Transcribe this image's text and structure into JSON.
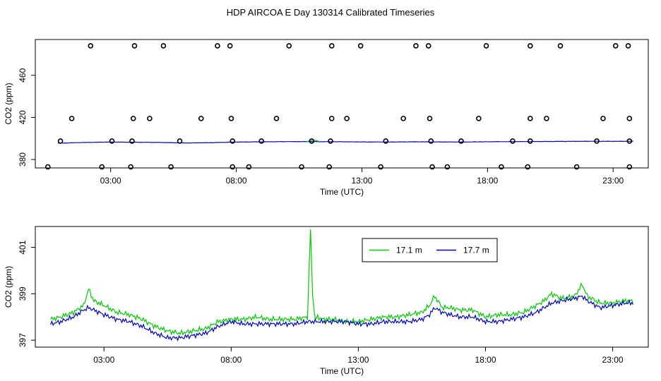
{
  "title": "HDP AIRCOA E  Day 130314  Calibrated Timeseries",
  "chart_data": [
    {
      "type": "scatter+line",
      "xlabel": "Time (UTC)",
      "ylabel": "CO2 (ppm)",
      "xlim": [
        0,
        24.4
      ],
      "ylim": [
        372,
        494
      ],
      "x_ticks": [
        3,
        8,
        13,
        18,
        23
      ],
      "x_tick_labels": [
        "03:00",
        "08:00",
        "13:00",
        "18:00",
        "23:00"
      ],
      "y_ticks": [
        380,
        420,
        460
      ],
      "y_tick_labels": [
        "380",
        "420",
        "460"
      ],
      "calibration_points": {
        "x": [
          2.2,
          3.95,
          5.1,
          7.25,
          7.75,
          10.1,
          11.8,
          12.95,
          15.15,
          15.65,
          17.95,
          19.7,
          20.9,
          23.1,
          23.6,
          1.45,
          3.9,
          4.55,
          6.6,
          7.8,
          9.6,
          11.8,
          12.4,
          14.65,
          15.7,
          17.65,
          19.7,
          20.35,
          22.6,
          23.65,
          1.0,
          3.05,
          3.85,
          5.75,
          7.85,
          9.0,
          11.0,
          11.75,
          13.95,
          15.75,
          16.95,
          19.0,
          19.7,
          22.35,
          23.65,
          0.5,
          2.65,
          3.8,
          5.4,
          7.85,
          8.5,
          10.6,
          11.7,
          13.75,
          15.8,
          16.4,
          18.55,
          19.6,
          21.55,
          23.65
        ],
        "y": [
          488,
          488,
          488,
          488,
          488,
          488,
          488,
          488,
          488,
          488,
          488,
          488,
          488,
          488,
          488,
          419,
          419,
          419,
          419,
          419,
          419,
          419,
          419,
          419,
          419,
          419,
          419,
          419,
          419,
          419,
          397.5,
          397.5,
          397.5,
          397.5,
          397.5,
          397.5,
          397.5,
          397.5,
          397.5,
          397.5,
          397.5,
          397.5,
          397.5,
          397.5,
          397.5,
          373,
          373,
          373,
          373,
          373,
          373,
          373,
          373,
          373,
          373,
          373,
          373,
          373,
          373,
          373
        ]
      },
      "series": [
        {
          "name": "17.7 m",
          "color": "#0000cc",
          "x": [
            0.9,
            2.0,
            3.0,
            5.0,
            6.0,
            7.0,
            8.0,
            9.0,
            10.0,
            11.0,
            12.0,
            13.0,
            14.0,
            15.0,
            16.0,
            17.0,
            18.0,
            19.0,
            20.0,
            21.0,
            22.0,
            23.0,
            23.8
          ],
          "values": [
            395.5,
            396.2,
            396.6,
            396.2,
            395.7,
            396.0,
            396.6,
            396.8,
            397.0,
            397.0,
            396.9,
            396.7,
            396.6,
            396.8,
            396.7,
            396.6,
            396.9,
            397.0,
            397.1,
            397.2,
            397.3,
            397.3,
            397.3
          ]
        },
        {
          "name": "17.1 m",
          "color": "#00cc00",
          "x": [
            10.8,
            11.1,
            11.3
          ],
          "values": [
            397.0,
            398.5,
            397.2
          ]
        }
      ]
    },
    {
      "type": "line",
      "xlabel": "Time (UTC)",
      "ylabel": "CO2 (ppm)",
      "xlim": [
        0.3,
        24.4
      ],
      "ylim": [
        396.7,
        401.9
      ],
      "x_ticks": [
        3,
        8,
        13,
        18,
        23
      ],
      "x_tick_labels": [
        "03:00",
        "08:00",
        "13:00",
        "18:00",
        "23:00"
      ],
      "y_ticks": [
        397,
        399,
        401
      ],
      "y_tick_labels": [
        "397",
        "399",
        "401"
      ],
      "legend": {
        "position": "top-right",
        "entries": [
          "17.1 m",
          "17.7 m"
        ]
      },
      "series": [
        {
          "name": "17.1 m",
          "color": "#00cc00",
          "x": [
            0.9,
            1.3,
            1.8,
            2.2,
            2.4,
            2.6,
            3.0,
            3.5,
            4.0,
            4.5,
            5.0,
            5.5,
            6.0,
            6.5,
            7.0,
            7.5,
            8.0,
            8.5,
            9.0,
            9.5,
            10.0,
            10.5,
            11.0,
            11.12,
            11.2,
            11.3,
            11.4,
            11.6,
            12.0,
            12.5,
            13.0,
            13.5,
            14.0,
            14.5,
            15.0,
            15.5,
            15.8,
            16.0,
            16.3,
            16.6,
            17.0,
            17.5,
            18.0,
            18.5,
            19.0,
            19.5,
            20.0,
            20.3,
            20.6,
            21.0,
            21.5,
            21.8,
            22.0,
            22.5,
            23.0,
            23.5,
            23.8
          ],
          "values": [
            397.9,
            398.0,
            398.2,
            398.5,
            399.2,
            398.7,
            398.5,
            398.2,
            398.1,
            397.9,
            397.6,
            397.4,
            397.3,
            397.4,
            397.5,
            397.8,
            397.9,
            397.9,
            398.0,
            397.9,
            397.9,
            397.9,
            398.0,
            401.8,
            399.0,
            397.9,
            398.0,
            397.9,
            397.9,
            397.8,
            397.8,
            397.9,
            398.0,
            398.0,
            398.1,
            398.2,
            398.5,
            398.9,
            398.4,
            398.4,
            398.3,
            398.3,
            398.0,
            398.1,
            398.1,
            398.2,
            398.5,
            398.7,
            399.0,
            398.8,
            398.9,
            399.4,
            398.9,
            398.6,
            398.6,
            398.7,
            398.7
          ]
        },
        {
          "name": "17.7 m",
          "color": "#0000cc",
          "x": [
            0.9,
            1.3,
            1.8,
            2.2,
            2.4,
            2.6,
            3.0,
            3.5,
            4.0,
            4.5,
            5.0,
            5.5,
            6.0,
            6.5,
            7.0,
            7.5,
            8.0,
            8.5,
            9.0,
            9.5,
            10.0,
            10.5,
            11.0,
            11.2,
            11.5,
            12.0,
            12.5,
            13.0,
            13.5,
            14.0,
            14.5,
            15.0,
            15.5,
            15.8,
            16.0,
            16.3,
            16.6,
            17.0,
            17.5,
            18.0,
            18.5,
            19.0,
            19.5,
            20.0,
            20.3,
            20.6,
            21.0,
            21.5,
            21.8,
            22.0,
            22.5,
            23.0,
            23.5,
            23.8
          ],
          "values": [
            397.7,
            397.8,
            398.0,
            398.3,
            398.4,
            398.3,
            398.1,
            397.9,
            397.8,
            397.6,
            397.3,
            397.1,
            397.1,
            397.2,
            397.3,
            397.6,
            397.8,
            397.7,
            397.7,
            397.7,
            397.7,
            397.7,
            397.8,
            397.8,
            397.8,
            397.8,
            397.8,
            397.7,
            397.7,
            397.8,
            397.8,
            397.8,
            397.9,
            398.1,
            398.4,
            398.2,
            398.1,
            398.0,
            398.0,
            397.8,
            397.8,
            397.9,
            398.0,
            398.2,
            398.4,
            398.6,
            398.7,
            398.8,
            398.9,
            398.7,
            398.4,
            398.5,
            398.6,
            398.6
          ]
        }
      ]
    }
  ]
}
